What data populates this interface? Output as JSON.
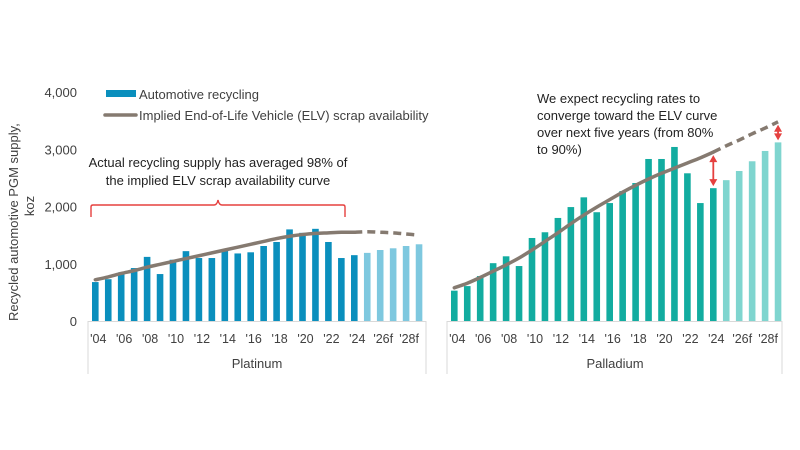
{
  "chart_data": {
    "type": "bar",
    "title": "",
    "ylabel": "Recycled automotive PGM supply, koz",
    "ylabel_lines": [
      "Recycled automotive PGM supply,",
      "koz"
    ],
    "ylim": [
      0,
      4000
    ],
    "yticks": [
      0,
      1000,
      2000,
      3000,
      4000
    ],
    "ytick_labels": [
      "0",
      "1,000",
      "2,000",
      "3,000",
      "4,000"
    ],
    "grid": false,
    "legend": {
      "placement": "top-left",
      "entries": [
        {
          "label": "Automotive recycling",
          "type": "bar",
          "color": "#0a8fbd"
        },
        {
          "label": "Implied End-of-Life Vehicle (ELV) scrap availability",
          "type": "line",
          "color": "#857a70"
        }
      ]
    },
    "x_tick_labels": [
      "'04",
      "'06",
      "'08",
      "'10",
      "'12",
      "'14",
      "'16",
      "'18",
      "'20",
      "'22",
      "'24",
      "'26f",
      "'28f"
    ],
    "panels": [
      {
        "name": "Platinum",
        "years": [
          2004,
          2005,
          2006,
          2007,
          2008,
          2009,
          2010,
          2011,
          2012,
          2013,
          2014,
          2015,
          2016,
          2017,
          2018,
          2019,
          2020,
          2021,
          2022,
          2023,
          2024,
          2025,
          2026,
          2027,
          2028,
          2029
        ],
        "forecast_from": 2025,
        "automotive_recycling": [
          680,
          730,
          850,
          925,
          1120,
          820,
          1070,
          1220,
          1100,
          1100,
          1240,
          1180,
          1200,
          1310,
          1380,
          1600,
          1540,
          1610,
          1380,
          1100,
          1150,
          1190,
          1240,
          1270,
          1310,
          1340
        ],
        "elv_scrap_availability": [
          720,
          770,
          830,
          880,
          940,
          990,
          1040,
          1090,
          1140,
          1190,
          1240,
          1290,
          1340,
          1390,
          1440,
          1480,
          1510,
          1530,
          1540,
          1550,
          1550,
          1560,
          1550,
          1540,
          1520,
          1500
        ],
        "bar_color": "#0a8fbd",
        "forecast_bar_color": "#7ec8df"
      },
      {
        "name": "Palladium",
        "years": [
          2004,
          2005,
          2006,
          2007,
          2008,
          2009,
          2010,
          2011,
          2012,
          2013,
          2014,
          2015,
          2016,
          2017,
          2018,
          2019,
          2020,
          2021,
          2022,
          2023,
          2024,
          2025,
          2026,
          2027,
          2028,
          2029
        ],
        "forecast_from": 2025,
        "automotive_recycling": [
          530,
          610,
          785,
          1010,
          1130,
          960,
          1450,
          1550,
          1800,
          1990,
          2160,
          1900,
          2060,
          2270,
          2410,
          2830,
          2830,
          3040,
          2580,
          2060,
          2320,
          2460,
          2620,
          2790,
          2970,
          3120
        ],
        "elv_scrap_availability": [
          580,
          660,
          760,
          870,
          980,
          1100,
          1240,
          1390,
          1540,
          1700,
          1850,
          1990,
          2120,
          2250,
          2370,
          2480,
          2580,
          2670,
          2760,
          2850,
          2950,
          3060,
          3160,
          3270,
          3370,
          3480
        ],
        "bar_color": "#12aca0",
        "forecast_bar_color": "#7fd5cf"
      }
    ],
    "annotations": [
      {
        "panel": "Platinum",
        "lines": [
          "Actual recycling supply has averaged 98% of",
          "the implied ELV scrap availability curve"
        ],
        "marker": "brace",
        "color": "#e5403f"
      },
      {
        "panel": "Palladium",
        "lines": [
          "We expect recycling rates to",
          "converge toward the ELV curve",
          "over next five years (from 80%",
          "to 90%)"
        ],
        "marker": "double-arrows",
        "color": "#e5403f"
      }
    ]
  }
}
